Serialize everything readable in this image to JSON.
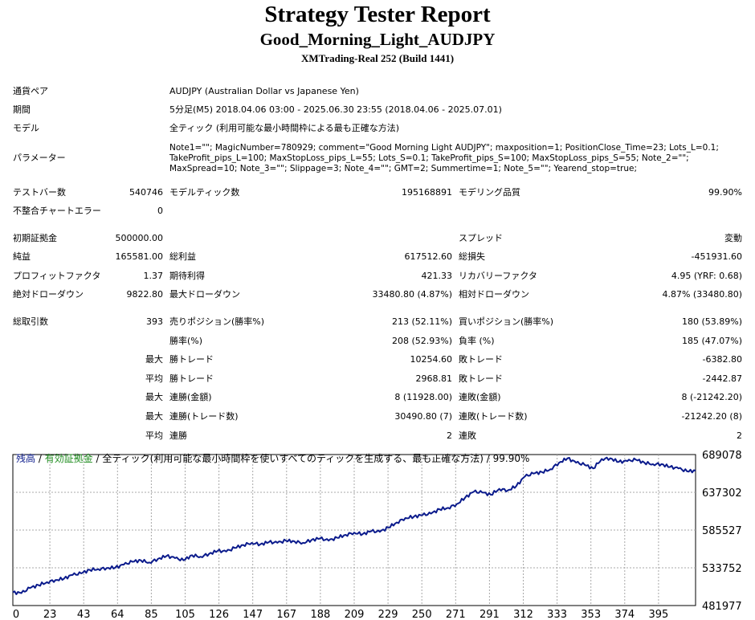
{
  "header": {
    "title": "Strategy Tester Report",
    "subtitle": "Good_Morning_Light_AUDJPY",
    "server": "XMTrading-Real 252 (Build 1441)"
  },
  "info": {
    "symbol_label": "通貨ペア",
    "symbol_value": "AUDJPY (Australian Dollar vs Japanese Yen)",
    "period_label": "期間",
    "period_value": "5分足(M5) 2018.04.06 03:00 - 2025.06.30 23:55 (2018.04.06 - 2025.07.01)",
    "model_label": "モデル",
    "model_value": "全ティック (利用可能な最小時間枠による最も正確な方法)",
    "params_label": "パラメーター",
    "params_value": "Note1=\"\"; MagicNumber=780929; comment=\"Good Morning Light AUDJPY\"; maxposition=1; PositionClose_Time=23; Lots_L=0.1; TakeProfit_pips_L=100; MaxStopLoss_pips_L=55; Lots_S=0.1; TakeProfit_pips_S=100; MaxStopLoss_pips_S=55; Note_2=\"\"; MaxSpread=10; Note_3=\"\"; Slippage=3; Note_4=\"\"; GMT=2; Summertime=1; Note_5=\"\"; Yearend_stop=true;"
  },
  "stats": {
    "bars_label": "テストバー数",
    "bars_value": "540746",
    "ticks_label": "モデルティック数",
    "ticks_value": "195168891",
    "quality_label": "モデリング品質",
    "quality_value": "99.90%",
    "mismatch_label": "不整合チャートエラー",
    "mismatch_value": "0",
    "deposit_label": "初期証拠金",
    "deposit_value": "500000.00",
    "spread_label": "スプレッド",
    "spread_value": "変動",
    "net_label": "純益",
    "net_value": "165581.00",
    "gross_profit_label": "総利益",
    "gross_profit_value": "617512.60",
    "gross_loss_label": "総損失",
    "gross_loss_value": "-451931.60",
    "pf_label": "プロフィットファクタ",
    "pf_value": "1.37",
    "expected_label": "期待利得",
    "expected_value": "421.33",
    "recovery_label": "リカバリーファクタ",
    "recovery_value": "4.95 (YRF: 0.68)",
    "abs_dd_label": "絶対ドローダウン",
    "abs_dd_value": "9822.80",
    "max_dd_label": "最大ドローダウン",
    "max_dd_value": "33480.80 (4.87%)",
    "rel_dd_label": "相対ドローダウン",
    "rel_dd_value": "4.87% (33480.80)",
    "total_label": "総取引数",
    "total_value": "393",
    "short_label": "売りポジション(勝率%)",
    "short_value": "213 (52.11%)",
    "long_label": "買いポジション(勝率%)",
    "long_value": "180 (53.89%)",
    "win_rate_label": "勝率(%)",
    "win_rate_value": "208 (52.93%)",
    "loss_rate_label": "負率 (%)",
    "loss_rate_value": "185 (47.07%)",
    "max_label": "最大",
    "avg_label": "平均",
    "largest_win_label": "勝トレード",
    "largest_win_value": "10254.60",
    "largest_loss_label": "敗トレード",
    "largest_loss_value": "-6382.80",
    "avg_win_label": "勝トレード",
    "avg_win_value": "2968.81",
    "avg_loss_label": "敗トレード",
    "avg_loss_value": "-2442.87",
    "cons_wins_money_label": "連勝(金額)",
    "cons_wins_money_value": "8 (11928.00)",
    "cons_losses_money_label": "連敗(金額)",
    "cons_losses_money_value": "8 (-21242.20)",
    "cons_wins_trades_label": "連勝(トレード数)",
    "cons_wins_trades_value": "30490.80 (7)",
    "cons_losses_trades_label": "連敗(トレード数)",
    "cons_losses_trades_value": "-21242.20 (8)",
    "avg_cons_wins_label": "連勝",
    "avg_cons_wins_value": "2",
    "avg_cons_losses_label": "連敗",
    "avg_cons_losses_value": "2"
  },
  "legend": {
    "balance": "残高",
    "sep1": " / ",
    "equity": "有効証拠金",
    "rest": " / 全ティック(利用可能な最小時間枠を使いすべてのティックを生成する、最も正確な方法) / 99.90%"
  },
  "colors": {
    "balance": "#0b1b8c",
    "equity": "#1e8c1e",
    "grid": "#a8a8a8"
  },
  "chart_data": {
    "type": "line",
    "xlabel": "",
    "ylabel": "",
    "x_ticks": [
      "0",
      "23",
      "43",
      "64",
      "85",
      "105",
      "126",
      "147",
      "167",
      "188",
      "209",
      "229",
      "250",
      "271",
      "291",
      "312",
      "333",
      "353",
      "374",
      "395"
    ],
    "y_ticks": [
      "689078",
      "637302",
      "585527",
      "533752",
      "481977"
    ],
    "xlim": [
      0,
      400
    ],
    "ylim": [
      481977,
      689078
    ],
    "series": [
      {
        "name": "残高",
        "points": [
          [
            0,
            500000
          ],
          [
            5,
            499000
          ],
          [
            10,
            506000
          ],
          [
            15,
            510000
          ],
          [
            20,
            514000
          ],
          [
            25,
            517000
          ],
          [
            30,
            519000
          ],
          [
            35,
            524000
          ],
          [
            40,
            526000
          ],
          [
            45,
            531000
          ],
          [
            50,
            532000
          ],
          [
            55,
            533500
          ],
          [
            60,
            534000
          ],
          [
            65,
            538000
          ],
          [
            70,
            542000
          ],
          [
            75,
            544000
          ],
          [
            80,
            541000
          ],
          [
            85,
            546000
          ],
          [
            90,
            550000
          ],
          [
            95,
            547000
          ],
          [
            100,
            544000
          ],
          [
            105,
            551000
          ],
          [
            110,
            549000
          ],
          [
            115,
            553000
          ],
          [
            120,
            557000
          ],
          [
            125,
            556000
          ],
          [
            130,
            561000
          ],
          [
            135,
            565000
          ],
          [
            140,
            568000
          ],
          [
            145,
            566000
          ],
          [
            150,
            569000
          ],
          [
            155,
            568000
          ],
          [
            160,
            571000
          ],
          [
            165,
            570000
          ],
          [
            170,
            568000
          ],
          [
            175,
            572000
          ],
          [
            180,
            574000
          ],
          [
            185,
            571000
          ],
          [
            190,
            575000
          ],
          [
            195,
            579000
          ],
          [
            200,
            582000
          ],
          [
            205,
            580000
          ],
          [
            210,
            584000
          ],
          [
            215,
            583000
          ],
          [
            220,
            589000
          ],
          [
            225,
            596000
          ],
          [
            230,
            602000
          ],
          [
            235,
            604000
          ],
          [
            240,
            606000
          ],
          [
            245,
            608000
          ],
          [
            250,
            614000
          ],
          [
            255,
            616000
          ],
          [
            260,
            621000
          ],
          [
            265,
            630000
          ],
          [
            270,
            638000
          ],
          [
            275,
            637000
          ],
          [
            280,
            634000
          ],
          [
            285,
            642000
          ],
          [
            290,
            640000
          ],
          [
            295,
            646000
          ],
          [
            300,
            659000
          ],
          [
            305,
            663000
          ],
          [
            310,
            665000
          ],
          [
            315,
            669000
          ],
          [
            320,
            678000
          ],
          [
            325,
            684000
          ],
          [
            330,
            678000
          ],
          [
            335,
            675000
          ],
          [
            340,
            670000
          ],
          [
            345,
            683000
          ],
          [
            350,
            684000
          ],
          [
            355,
            679000
          ],
          [
            360,
            680000
          ],
          [
            365,
            682000
          ],
          [
            370,
            678000
          ],
          [
            375,
            676000
          ],
          [
            380,
            676000
          ],
          [
            385,
            672000
          ],
          [
            390,
            670000
          ],
          [
            395,
            666000
          ],
          [
            400,
            667000
          ]
        ]
      }
    ]
  }
}
